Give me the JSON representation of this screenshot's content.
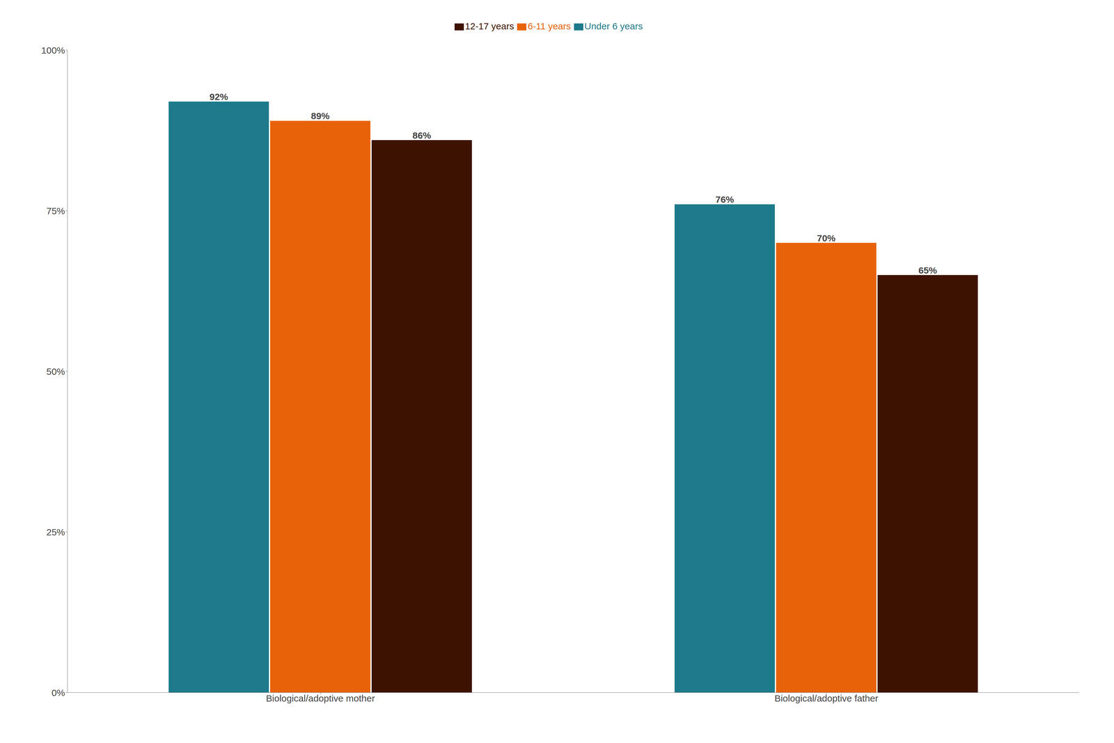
{
  "chart_data": {
    "type": "bar",
    "categories": [
      "Biological/adoptive mother",
      "Biological/adoptive father"
    ],
    "series": [
      {
        "name": "Under 6 years",
        "color": "#1c7a8a",
        "values": [
          92,
          76
        ],
        "value_labels": [
          "92%",
          "76%"
        ]
      },
      {
        "name": "6-11 years",
        "color": "#e8620a",
        "values": [
          89,
          70
        ],
        "value_labels": [
          "89%",
          "70%"
        ]
      },
      {
        "name": "12-17 years",
        "color": "#3d1200",
        "values": [
          86,
          65
        ],
        "value_labels": [
          "86%",
          "65%"
        ]
      }
    ],
    "ylim": [
      0,
      100
    ],
    "yticks": [
      {
        "value": 0,
        "label": "0%"
      },
      {
        "value": 25,
        "label": "25%"
      },
      {
        "value": 50,
        "label": "50%"
      },
      {
        "value": 75,
        "label": "75%"
      },
      {
        "value": 100,
        "label": "100%"
      }
    ],
    "grid": false,
    "legend": "top",
    "data_labels": true
  }
}
